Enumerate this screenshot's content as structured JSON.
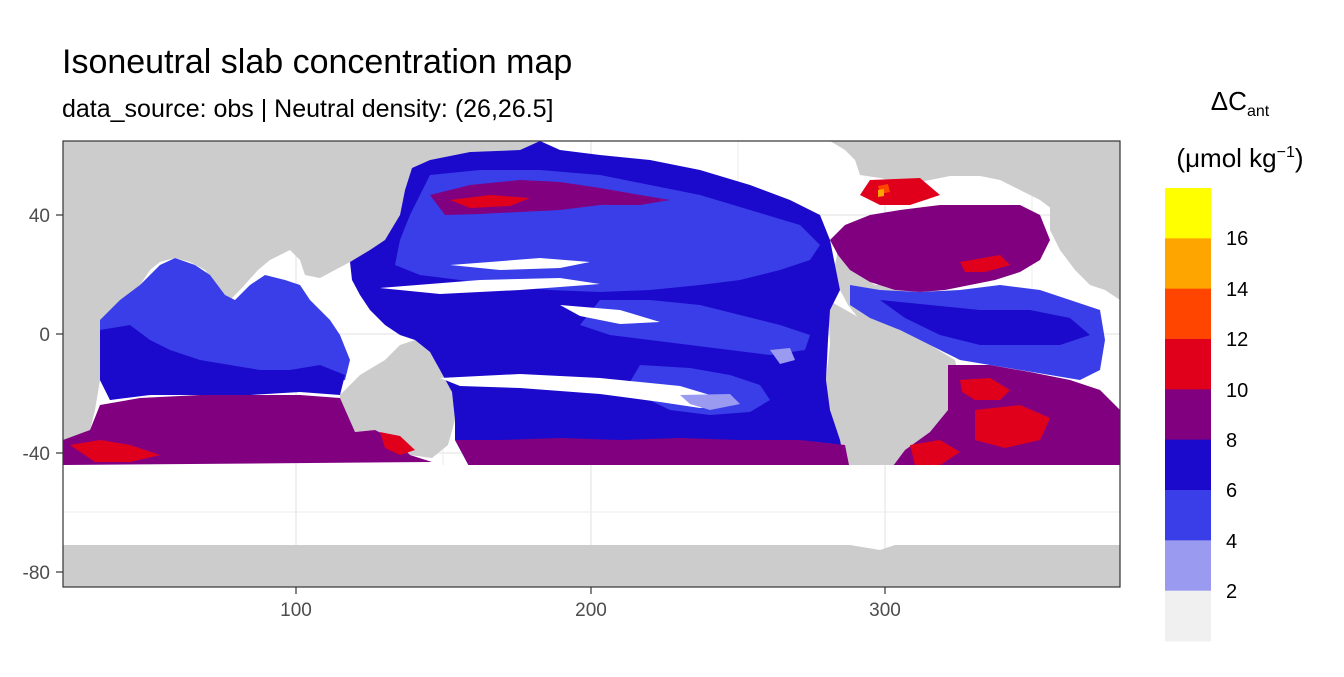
{
  "title": "Isoneutral slab concentration map",
  "subtitle": "data_source: obs | Neutral density: (26,26.5]",
  "chart_data": {
    "type": "heatmap",
    "title": "Isoneutral slab concentration map",
    "subtitle": "data_source: obs | Neutral density: (26,26.5]",
    "x_ticks": [
      100,
      200,
      300
    ],
    "y_ticks": [
      40,
      0,
      -40,
      -80
    ],
    "xlim": [
      20,
      380
    ],
    "ylim": [
      -85,
      65
    ],
    "grid": true,
    "legend": {
      "title": "ΔC",
      "title_subscript": "ant",
      "unit_main": "(μmol kg",
      "unit_superscript": "−1",
      "unit_close": ")",
      "placement": "right",
      "breaks": [
        "16",
        "14",
        "12",
        "10",
        "8",
        "6",
        "4",
        "2"
      ],
      "bins": [
        {
          "range": [
            16,
            18
          ],
          "color": "#ffff00"
        },
        {
          "range": [
            14,
            16
          ],
          "color": "#ffa500"
        },
        {
          "range": [
            12,
            14
          ],
          "color": "#ff4500"
        },
        {
          "range": [
            10,
            12
          ],
          "color": "#e0001c"
        },
        {
          "range": [
            8,
            10
          ],
          "color": "#800080"
        },
        {
          "range": [
            6,
            8
          ],
          "color": "#1c0acc"
        },
        {
          "range": [
            4,
            6
          ],
          "color": "#3a3ee8"
        },
        {
          "range": [
            2,
            4
          ],
          "color": "#9a9af0"
        },
        {
          "range": [
            0,
            2
          ],
          "color": "#f0f0f0"
        }
      ]
    },
    "colors": {
      "land": "#cccccc",
      "no_data": "#ffffff",
      "c_2_4": "#9a9af0",
      "c_4_6": "#3a3ee8",
      "c_6_8": "#1c0acc",
      "c_8_10": "#800080",
      "c_10_12": "#e0001c",
      "c_12_14": "#ff4500",
      "c_14_16": "#ffa500"
    }
  }
}
